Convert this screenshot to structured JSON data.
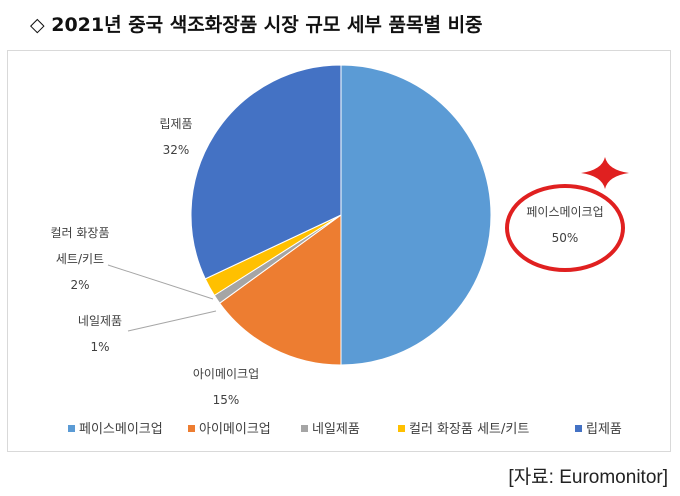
{
  "title": "◇ 2021년 중국 색조화장품 시장 규모 세부 품목별 비중",
  "source": "[자료: Euromonitor]",
  "highlight_color": "#e02020",
  "chart_data": {
    "type": "pie",
    "slices": [
      {
        "label": "페이스메이크업",
        "value": 50,
        "pct_label": "50%",
        "legend_label": "페이스메이크업",
        "color": "#5b9bd5"
      },
      {
        "label": "아이메이크업",
        "value": 15,
        "pct_label": "15%",
        "legend_label": "아이메이크업",
        "color": "#ed7d31"
      },
      {
        "label": "네일제품",
        "value": 1,
        "pct_label": "1%",
        "legend_label": "네일제품",
        "color": "#a5a5a5"
      },
      {
        "label": "컬러 화장품\n세트/키트",
        "value": 2,
        "pct_label": "2%",
        "legend_label": "컬러 화장품 세트/키트",
        "color": "#ffc000"
      },
      {
        "label": "립제품",
        "value": 32,
        "pct_label": "32%",
        "legend_label": "립제품",
        "color": "#4472c4"
      }
    ],
    "legend_position": "bottom",
    "start_position": "top",
    "direction": "clockwise"
  }
}
